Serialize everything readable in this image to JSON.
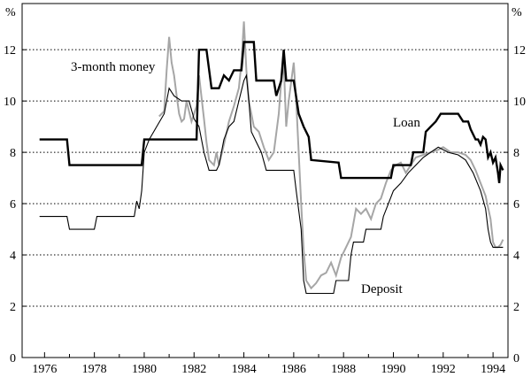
{
  "units": {
    "left": "%",
    "right": "%"
  },
  "chart_data": {
    "type": "line",
    "title": "",
    "xlabel": "",
    "ylabel": "%",
    "xlim": [
      1975.1,
      1994.6
    ],
    "ylim": [
      0,
      13.8
    ],
    "grid": "horizontal dotted",
    "legend": "none (labels placed beside lines)",
    "x_ticks": [
      1976,
      1978,
      1980,
      1982,
      1984,
      1986,
      1988,
      1990,
      1992,
      1994
    ],
    "x_tick_labels": [
      "1976",
      "1978",
      "1980",
      "1982",
      "1984",
      "1986",
      "1988",
      "1990",
      "1992",
      "1994"
    ],
    "y_ticks": [
      0,
      2,
      4,
      6,
      8,
      10,
      12
    ],
    "y_tick_labels": [
      "0",
      "2",
      "4",
      "6",
      "8",
      "10",
      "12"
    ],
    "series": [
      {
        "name": "Loan",
        "color": "#000000",
        "style": "thick",
        "points": [
          [
            1975.8,
            8.5
          ],
          [
            1976.9,
            8.5
          ],
          [
            1977.0,
            7.5
          ],
          [
            1979.9,
            7.5
          ],
          [
            1980.0,
            8.5
          ],
          [
            1982.1,
            8.5
          ],
          [
            1982.2,
            12.0
          ],
          [
            1982.5,
            12.0
          ],
          [
            1982.7,
            10.5
          ],
          [
            1983.0,
            10.5
          ],
          [
            1983.2,
            11.0
          ],
          [
            1983.4,
            10.8
          ],
          [
            1983.6,
            11.2
          ],
          [
            1983.9,
            11.2
          ],
          [
            1984.0,
            12.3
          ],
          [
            1984.4,
            12.3
          ],
          [
            1984.5,
            10.8
          ],
          [
            1985.2,
            10.8
          ],
          [
            1985.3,
            10.2
          ],
          [
            1985.5,
            10.8
          ],
          [
            1985.6,
            12.0
          ],
          [
            1985.7,
            10.8
          ],
          [
            1986.0,
            10.8
          ],
          [
            1986.2,
            9.5
          ],
          [
            1986.4,
            9.0
          ],
          [
            1986.6,
            8.6
          ],
          [
            1986.7,
            7.7
          ],
          [
            1987.8,
            7.6
          ],
          [
            1987.9,
            7.0
          ],
          [
            1989.9,
            7.0
          ],
          [
            1990.0,
            7.5
          ],
          [
            1990.7,
            7.5
          ],
          [
            1990.8,
            8.0
          ],
          [
            1991.2,
            8.0
          ],
          [
            1991.3,
            8.8
          ],
          [
            1991.5,
            9.0
          ],
          [
            1991.7,
            9.2
          ],
          [
            1991.9,
            9.5
          ],
          [
            1992.6,
            9.5
          ],
          [
            1992.8,
            9.2
          ],
          [
            1993.0,
            9.2
          ],
          [
            1993.1,
            8.9
          ],
          [
            1993.3,
            8.5
          ],
          [
            1993.4,
            8.5
          ],
          [
            1993.5,
            8.3
          ],
          [
            1993.6,
            8.6
          ],
          [
            1993.7,
            8.5
          ],
          [
            1993.8,
            7.8
          ],
          [
            1993.9,
            8.0
          ],
          [
            1994.0,
            7.6
          ],
          [
            1994.1,
            7.8
          ],
          [
            1994.2,
            7.2
          ],
          [
            1994.25,
            6.8
          ],
          [
            1994.3,
            7.5
          ],
          [
            1994.4,
            7.3
          ]
        ]
      },
      {
        "name": "3-month money",
        "color": "#a6a6a6",
        "style": "medium",
        "points": [
          [
            1980.6,
            9.4
          ],
          [
            1980.8,
            9.6
          ],
          [
            1980.9,
            11.2
          ],
          [
            1981.0,
            12.5
          ],
          [
            1981.1,
            11.5
          ],
          [
            1981.2,
            11.0
          ],
          [
            1981.3,
            10.2
          ],
          [
            1981.4,
            9.5
          ],
          [
            1981.5,
            9.2
          ],
          [
            1981.6,
            9.3
          ],
          [
            1981.7,
            10.0
          ],
          [
            1981.9,
            9.2
          ],
          [
            1982.1,
            9.8
          ],
          [
            1982.2,
            11.0
          ],
          [
            1982.4,
            9.3
          ],
          [
            1982.5,
            8.4
          ],
          [
            1982.6,
            7.7
          ],
          [
            1982.8,
            7.5
          ],
          [
            1982.9,
            8.0
          ],
          [
            1983.0,
            7.5
          ],
          [
            1983.2,
            8.3
          ],
          [
            1983.4,
            9.2
          ],
          [
            1983.6,
            9.8
          ],
          [
            1983.8,
            10.5
          ],
          [
            1983.9,
            11.5
          ],
          [
            1984.0,
            13.1
          ],
          [
            1984.1,
            11.2
          ],
          [
            1984.2,
            10.0
          ],
          [
            1984.4,
            9.0
          ],
          [
            1984.6,
            8.8
          ],
          [
            1984.8,
            8.2
          ],
          [
            1985.0,
            7.7
          ],
          [
            1985.2,
            8.0
          ],
          [
            1985.4,
            9.5
          ],
          [
            1985.5,
            10.8
          ],
          [
            1985.6,
            11.5
          ],
          [
            1985.7,
            9.0
          ],
          [
            1985.8,
            10.0
          ],
          [
            1986.0,
            11.5
          ],
          [
            1986.1,
            10.0
          ],
          [
            1986.2,
            8.0
          ],
          [
            1986.3,
            6.0
          ],
          [
            1986.4,
            4.2
          ],
          [
            1986.5,
            3.0
          ],
          [
            1986.7,
            2.7
          ],
          [
            1986.9,
            2.9
          ],
          [
            1987.1,
            3.2
          ],
          [
            1987.3,
            3.3
          ],
          [
            1987.5,
            3.7
          ],
          [
            1987.7,
            3.2
          ],
          [
            1987.9,
            3.9
          ],
          [
            1988.1,
            4.3
          ],
          [
            1988.3,
            4.7
          ],
          [
            1988.5,
            5.8
          ],
          [
            1988.7,
            5.6
          ],
          [
            1988.9,
            5.8
          ],
          [
            1989.1,
            5.4
          ],
          [
            1989.3,
            6.0
          ],
          [
            1989.5,
            6.2
          ],
          [
            1989.7,
            6.8
          ],
          [
            1989.9,
            7.3
          ],
          [
            1990.1,
            7.5
          ],
          [
            1990.3,
            7.6
          ],
          [
            1990.5,
            7.2
          ],
          [
            1990.7,
            7.5
          ],
          [
            1990.9,
            7.8
          ],
          [
            1991.2,
            7.9
          ],
          [
            1991.5,
            8.0
          ],
          [
            1991.8,
            8.1
          ],
          [
            1992.0,
            8.2
          ],
          [
            1992.3,
            8.0
          ],
          [
            1992.6,
            8.0
          ],
          [
            1992.9,
            7.9
          ],
          [
            1993.1,
            7.7
          ],
          [
            1993.3,
            7.3
          ],
          [
            1993.5,
            6.8
          ],
          [
            1993.7,
            6.3
          ],
          [
            1993.9,
            5.4
          ],
          [
            1994.0,
            4.5
          ],
          [
            1994.1,
            4.3
          ],
          [
            1994.2,
            4.3
          ],
          [
            1994.3,
            4.4
          ],
          [
            1994.4,
            4.6
          ]
        ]
      },
      {
        "name": "Deposit",
        "color": "#000000",
        "style": "thin",
        "points": [
          [
            1975.8,
            5.5
          ],
          [
            1976.9,
            5.5
          ],
          [
            1977.0,
            5.0
          ],
          [
            1978.0,
            5.0
          ],
          [
            1978.1,
            5.5
          ],
          [
            1979.6,
            5.5
          ],
          [
            1979.7,
            6.1
          ],
          [
            1979.8,
            5.8
          ],
          [
            1979.9,
            6.5
          ],
          [
            1980.0,
            8.0
          ],
          [
            1980.2,
            8.5
          ],
          [
            1980.5,
            9.0
          ],
          [
            1980.8,
            9.5
          ],
          [
            1981.0,
            10.5
          ],
          [
            1981.2,
            10.2
          ],
          [
            1981.5,
            10.0
          ],
          [
            1981.8,
            10.0
          ],
          [
            1982.0,
            9.3
          ],
          [
            1982.2,
            9.0
          ],
          [
            1982.4,
            8.0
          ],
          [
            1982.6,
            7.3
          ],
          [
            1982.9,
            7.3
          ],
          [
            1983.0,
            7.5
          ],
          [
            1983.2,
            8.5
          ],
          [
            1983.4,
            9.0
          ],
          [
            1983.6,
            9.2
          ],
          [
            1983.8,
            10.0
          ],
          [
            1984.0,
            10.8
          ],
          [
            1984.1,
            11.0
          ],
          [
            1984.2,
            10.0
          ],
          [
            1984.3,
            8.8
          ],
          [
            1984.5,
            8.4
          ],
          [
            1984.7,
            8.0
          ],
          [
            1984.9,
            7.3
          ],
          [
            1986.0,
            7.3
          ],
          [
            1986.1,
            6.5
          ],
          [
            1986.3,
            5.0
          ],
          [
            1986.4,
            3.0
          ],
          [
            1986.5,
            2.5
          ],
          [
            1987.6,
            2.5
          ],
          [
            1987.7,
            3.0
          ],
          [
            1988.2,
            3.0
          ],
          [
            1988.3,
            4.0
          ],
          [
            1988.4,
            4.5
          ],
          [
            1988.8,
            4.5
          ],
          [
            1988.9,
            5.0
          ],
          [
            1989.5,
            5.0
          ],
          [
            1989.6,
            5.5
          ],
          [
            1989.8,
            6.0
          ],
          [
            1990.0,
            6.5
          ],
          [
            1990.3,
            6.8
          ],
          [
            1990.6,
            7.2
          ],
          [
            1990.9,
            7.5
          ],
          [
            1991.2,
            7.8
          ],
          [
            1991.5,
            8.0
          ],
          [
            1991.8,
            8.2
          ],
          [
            1992.2,
            8.0
          ],
          [
            1992.6,
            7.9
          ],
          [
            1992.9,
            7.7
          ],
          [
            1993.2,
            7.2
          ],
          [
            1993.5,
            6.5
          ],
          [
            1993.7,
            5.8
          ],
          [
            1993.8,
            5.0
          ],
          [
            1993.9,
            4.5
          ],
          [
            1994.0,
            4.3
          ],
          [
            1994.4,
            4.3
          ]
        ]
      }
    ]
  }
}
